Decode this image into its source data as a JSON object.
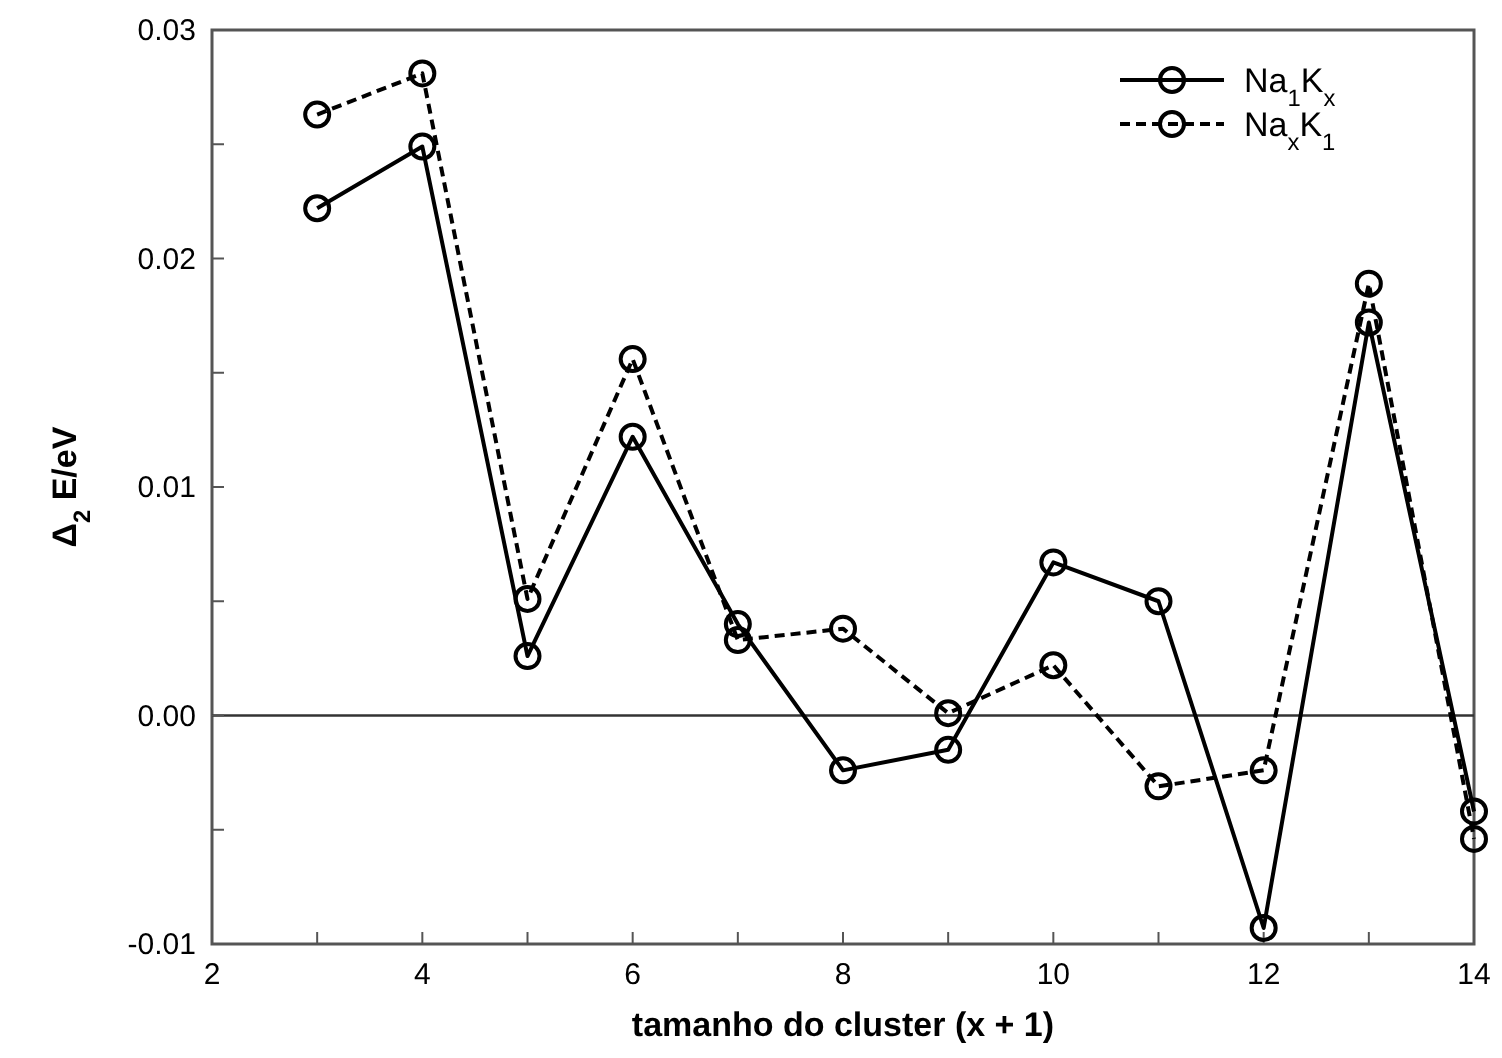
{
  "chart_data": {
    "type": "line",
    "xlabel": "tamanho do cluster (x + 1)",
    "ylabel": "Δ$_{2}$ E/eV",
    "x": [
      3,
      4,
      5,
      6,
      7,
      8,
      9,
      10,
      11,
      12,
      13,
      14
    ],
    "series": [
      {
        "name": "Na$_{1}$K$_{x}$",
        "color": "#000000",
        "line_style": "solid",
        "values": [
          0.0222,
          0.0249,
          0.0026,
          0.0122,
          0.004,
          -0.0024,
          -0.0015,
          0.0067,
          0.005,
          -0.0093,
          0.0172,
          -0.0042
        ]
      },
      {
        "name": "Na$_{x}$K$_{1}$",
        "color": "#000000",
        "line_style": "dashed",
        "values": [
          0.0263,
          0.0281,
          0.0051,
          0.0156,
          0.0033,
          0.0038,
          0.0001,
          0.0022,
          -0.0031,
          -0.0024,
          0.0189,
          -0.0054
        ]
      }
    ],
    "xlim": [
      2,
      14
    ],
    "xticks": [
      2,
      {
        "value": 3,
        "label": null
      },
      4,
      {
        "value": 5,
        "label": null
      },
      6,
      {
        "value": 7,
        "label": null
      },
      8,
      {
        "value": 9,
        "label": null
      },
      10,
      {
        "value": 11,
        "label": null
      },
      12,
      {
        "value": 13,
        "label": null
      },
      14
    ],
    "ylim": [
      -0.01,
      0.03
    ],
    "yticks": [
      {
        "value": -0.01,
        "label": "-0.01"
      },
      {
        "value": -0.005,
        "label": null
      },
      {
        "value": 0,
        "label": "0.00"
      },
      {
        "value": 0.005,
        "label": null
      },
      {
        "value": 0.01,
        "label": "0.01"
      },
      {
        "value": 0.015,
        "label": null
      },
      {
        "value": 0.02,
        "label": "0.02"
      },
      {
        "value": 0.025,
        "label": null
      },
      {
        "value": 0.03,
        "label": "0.03"
      }
    ],
    "ref_lines": [
      {
        "axis": "y",
        "value": 0
      }
    ],
    "marker": "circle",
    "legend": "top right",
    "grid": false
  }
}
